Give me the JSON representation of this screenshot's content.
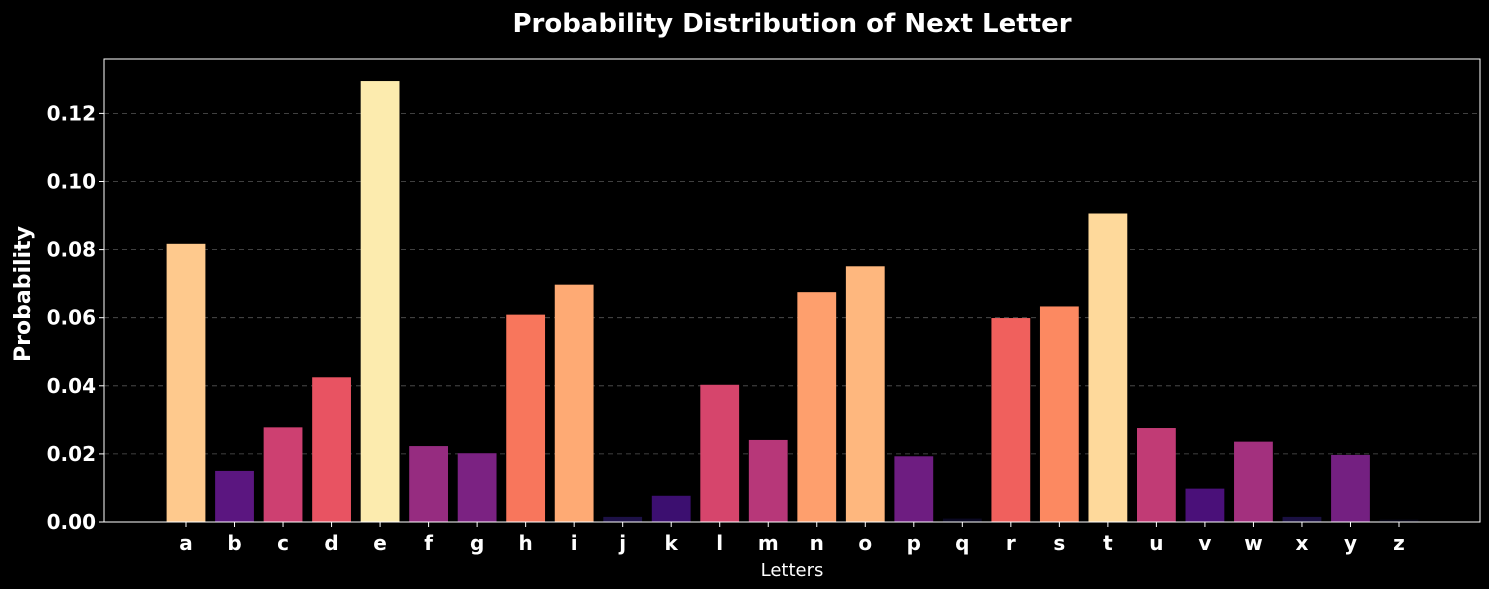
{
  "chart_data": {
    "type": "bar",
    "title": "Probability Distribution of Next Letter",
    "xlabel": "Letters",
    "ylabel": "Probability",
    "ylim": [
      0,
      0.136
    ],
    "yticks": [
      0.0,
      0.02,
      0.04,
      0.06,
      0.08,
      0.1,
      0.12
    ],
    "ytick_labels": [
      "0.00",
      "0.02",
      "0.04",
      "0.06",
      "0.08",
      "0.10",
      "0.12"
    ],
    "grid": "horizontal-dashed",
    "colormap": "magma",
    "categories": [
      "a",
      "b",
      "c",
      "d",
      "e",
      "f",
      "g",
      "h",
      "i",
      "j",
      "k",
      "l",
      "m",
      "n",
      "o",
      "p",
      "q",
      "r",
      "s",
      "t",
      "u",
      "v",
      "w",
      "x",
      "y",
      "z"
    ],
    "values": [
      0.0817,
      0.015,
      0.0278,
      0.0425,
      0.1295,
      0.0223,
      0.0202,
      0.0609,
      0.0697,
      0.0015,
      0.0077,
      0.0403,
      0.0241,
      0.0675,
      0.0751,
      0.0193,
      0.001,
      0.0599,
      0.0633,
      0.0906,
      0.0276,
      0.0098,
      0.0236,
      0.0015,
      0.0197,
      0.0007
    ],
    "colors": [
      "#fec98d",
      "#5b1680",
      "#cd4071",
      "#e85362",
      "#fcebae",
      "#962c80",
      "#7b2282",
      "#f8765c",
      "#feaa74",
      "#1d1147",
      "#3c0f70",
      "#d6456c",
      "#b73779",
      "#fe9f6d",
      "#feb77e",
      "#6e1d81",
      "#0a0822",
      "#f0605d",
      "#fc8961",
      "#fed99b",
      "#c13b75",
      "#4a1079",
      "#a3307e",
      "#1a1042",
      "#742081",
      "#050416"
    ]
  }
}
